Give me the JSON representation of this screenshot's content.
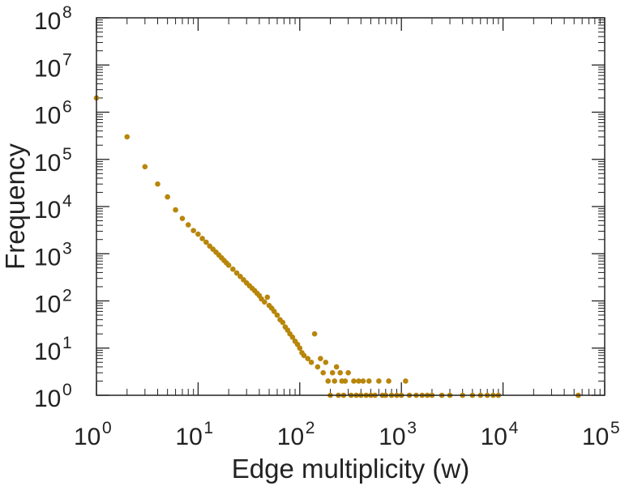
{
  "chart_data": {
    "type": "scatter",
    "title": "",
    "xlabel": "Edge multiplicity (w)",
    "ylabel": "Frequency",
    "xscale": "log",
    "yscale": "log",
    "xlim": [
      1,
      100000
    ],
    "ylim": [
      1,
      100000000
    ],
    "grid": false,
    "marker_color": "#b8860b",
    "xticks": [
      {
        "base": "10",
        "exp": "0"
      },
      {
        "base": "10",
        "exp": "1"
      },
      {
        "base": "10",
        "exp": "2"
      },
      {
        "base": "10",
        "exp": "3"
      },
      {
        "base": "10",
        "exp": "4"
      },
      {
        "base": "10",
        "exp": "5"
      }
    ],
    "yticks": [
      {
        "base": "10",
        "exp": "0"
      },
      {
        "base": "10",
        "exp": "1"
      },
      {
        "base": "10",
        "exp": "2"
      },
      {
        "base": "10",
        "exp": "3"
      },
      {
        "base": "10",
        "exp": "4"
      },
      {
        "base": "10",
        "exp": "5"
      },
      {
        "base": "10",
        "exp": "6"
      },
      {
        "base": "10",
        "exp": "7"
      },
      {
        "base": "10",
        "exp": "8"
      }
    ],
    "series": [
      {
        "name": "frequency",
        "points": [
          [
            1,
            2000000
          ],
          [
            2,
            300000
          ],
          [
            3,
            70000
          ],
          [
            4,
            30000
          ],
          [
            5,
            16000
          ],
          [
            6,
            8500
          ],
          [
            7,
            5600
          ],
          [
            8,
            4100
          ],
          [
            9,
            3100
          ],
          [
            10,
            2600
          ],
          [
            11,
            2100
          ],
          [
            12,
            1750
          ],
          [
            13,
            1450
          ],
          [
            14,
            1250
          ],
          [
            15,
            1080
          ],
          [
            16,
            940
          ],
          [
            17,
            820
          ],
          [
            18,
            720
          ],
          [
            19,
            640
          ],
          [
            20,
            570
          ],
          [
            22,
            470
          ],
          [
            24,
            390
          ],
          [
            26,
            330
          ],
          [
            28,
            280
          ],
          [
            30,
            240
          ],
          [
            32,
            210
          ],
          [
            34,
            185
          ],
          [
            36,
            165
          ],
          [
            38,
            145
          ],
          [
            40,
            130
          ],
          [
            42,
            110
          ],
          [
            45,
            95
          ],
          [
            48,
            120
          ],
          [
            50,
            80
          ],
          [
            53,
            70
          ],
          [
            56,
            60
          ],
          [
            60,
            50
          ],
          [
            64,
            40
          ],
          [
            68,
            35
          ],
          [
            72,
            28
          ],
          [
            76,
            24
          ],
          [
            80,
            20
          ],
          [
            85,
            17
          ],
          [
            90,
            14
          ],
          [
            95,
            12
          ],
          [
            100,
            10
          ],
          [
            105,
            8
          ],
          [
            110,
            7
          ],
          [
            120,
            6
          ],
          [
            130,
            5
          ],
          [
            140,
            20
          ],
          [
            150,
            4
          ],
          [
            160,
            6
          ],
          [
            170,
            3
          ],
          [
            180,
            5
          ],
          [
            190,
            2
          ],
          [
            200,
            1
          ],
          [
            210,
            3
          ],
          [
            220,
            2
          ],
          [
            230,
            4
          ],
          [
            240,
            1
          ],
          [
            250,
            3
          ],
          [
            260,
            2
          ],
          [
            270,
            1
          ],
          [
            280,
            2
          ],
          [
            300,
            3
          ],
          [
            320,
            1
          ],
          [
            340,
            2
          ],
          [
            360,
            1
          ],
          [
            380,
            2
          ],
          [
            400,
            1
          ],
          [
            420,
            2
          ],
          [
            450,
            1
          ],
          [
            480,
            2
          ],
          [
            500,
            1
          ],
          [
            550,
            1
          ],
          [
            600,
            2
          ],
          [
            650,
            1
          ],
          [
            700,
            1
          ],
          [
            750,
            2
          ],
          [
            800,
            1
          ],
          [
            900,
            1
          ],
          [
            1000,
            1
          ],
          [
            1100,
            2
          ],
          [
            1200,
            1
          ],
          [
            1400,
            1
          ],
          [
            1600,
            1
          ],
          [
            1800,
            1
          ],
          [
            2000,
            1
          ],
          [
            2500,
            1
          ],
          [
            3000,
            1
          ],
          [
            4000,
            1
          ],
          [
            5000,
            1
          ],
          [
            6000,
            1
          ],
          [
            7000,
            1
          ],
          [
            8000,
            1
          ],
          [
            9000,
            1
          ],
          [
            55000,
            1
          ]
        ]
      }
    ]
  }
}
